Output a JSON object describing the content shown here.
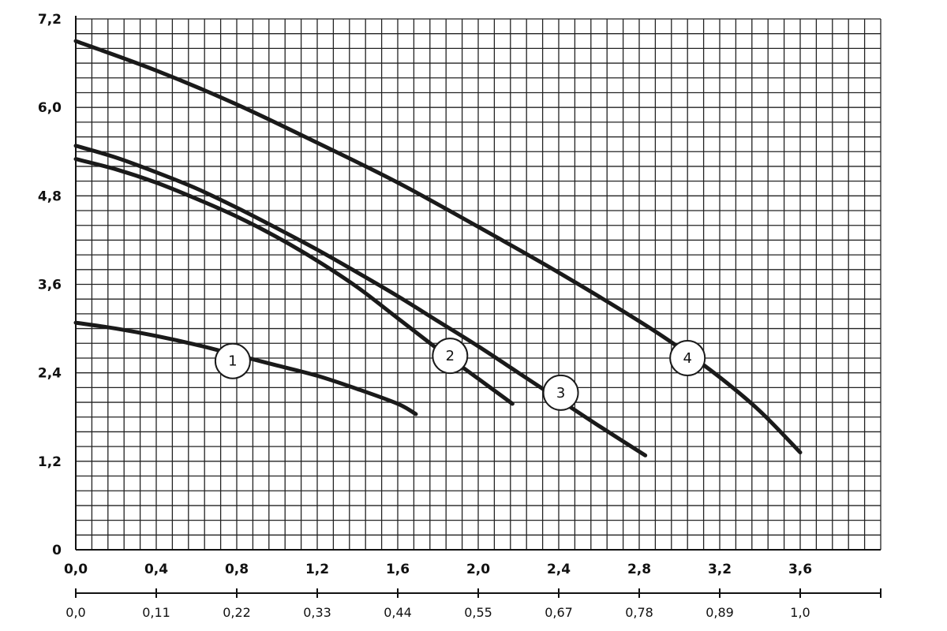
{
  "chart_data": {
    "type": "line",
    "title": "",
    "xlabel": "",
    "ylabel": "",
    "xlim": [
      0,
      4
    ],
    "ylim": [
      0,
      7.2
    ],
    "grid": true,
    "y_ticks": [
      {
        "value": 0,
        "label": "0"
      },
      {
        "value": 1.2,
        "label": "1,2"
      },
      {
        "value": 2.4,
        "label": "2,4"
      },
      {
        "value": 3.6,
        "label": "3,6"
      },
      {
        "value": 4.8,
        "label": "4,8"
      },
      {
        "value": 6.0,
        "label": "6,0"
      },
      {
        "value": 7.2,
        "label": "7,2"
      }
    ],
    "x_ticks": [
      {
        "value": 0,
        "label": "0,0"
      },
      {
        "value": 0.4,
        "label": "0,4"
      },
      {
        "value": 0.8,
        "label": "0,8"
      },
      {
        "value": 1.2,
        "label": "1,2"
      },
      {
        "value": 1.6,
        "label": "1,6"
      },
      {
        "value": 2.0,
        "label": "2,0"
      },
      {
        "value": 2.4,
        "label": "2,4"
      },
      {
        "value": 2.8,
        "label": "2,8"
      },
      {
        "value": 3.2,
        "label": "3,2"
      },
      {
        "value": 3.6,
        "label": "3,6"
      }
    ],
    "x2_ticks": [
      {
        "value": 0,
        "label": "0,0"
      },
      {
        "value": 0.4,
        "label": "0,11"
      },
      {
        "value": 0.8,
        "label": "0,22"
      },
      {
        "value": 1.2,
        "label": "0,33"
      },
      {
        "value": 1.6,
        "label": "0,44"
      },
      {
        "value": 2.0,
        "label": "0,55"
      },
      {
        "value": 2.4,
        "label": "0,67"
      },
      {
        "value": 2.8,
        "label": "0,78"
      },
      {
        "value": 3.2,
        "label": "0,89"
      },
      {
        "value": 3.6,
        "label": "1,0"
      }
    ],
    "series": [
      {
        "label": "1",
        "label_at": {
          "x": 0.78,
          "y": 2.56
        },
        "points": [
          [
            0,
            3.08
          ],
          [
            0.2,
            3.0
          ],
          [
            0.4,
            2.9
          ],
          [
            0.6,
            2.78
          ],
          [
            0.8,
            2.64
          ],
          [
            1.0,
            2.5
          ],
          [
            1.2,
            2.36
          ],
          [
            1.4,
            2.18
          ],
          [
            1.6,
            1.98
          ],
          [
            1.69,
            1.84
          ]
        ]
      },
      {
        "label": "2",
        "label_at": {
          "x": 1.86,
          "y": 2.63
        },
        "points": [
          [
            0,
            5.3
          ],
          [
            0.2,
            5.16
          ],
          [
            0.4,
            4.98
          ],
          [
            0.6,
            4.76
          ],
          [
            0.8,
            4.52
          ],
          [
            1.0,
            4.24
          ],
          [
            1.2,
            3.92
          ],
          [
            1.4,
            3.56
          ],
          [
            1.6,
            3.14
          ],
          [
            1.8,
            2.72
          ],
          [
            2.0,
            2.32
          ],
          [
            2.17,
            1.98
          ]
        ]
      },
      {
        "label": "3",
        "label_at": {
          "x": 2.41,
          "y": 2.13
        },
        "points": [
          [
            0,
            5.48
          ],
          [
            0.2,
            5.32
          ],
          [
            0.4,
            5.12
          ],
          [
            0.6,
            4.9
          ],
          [
            0.8,
            4.64
          ],
          [
            1.0,
            4.36
          ],
          [
            1.2,
            4.07
          ],
          [
            1.4,
            3.76
          ],
          [
            1.6,
            3.44
          ],
          [
            1.8,
            3.1
          ],
          [
            2.0,
            2.76
          ],
          [
            2.2,
            2.4
          ],
          [
            2.4,
            2.04
          ],
          [
            2.6,
            1.68
          ],
          [
            2.83,
            1.28
          ]
        ]
      },
      {
        "label": "4",
        "label_at": {
          "x": 3.04,
          "y": 2.6
        },
        "points": [
          [
            0,
            6.9
          ],
          [
            0.4,
            6.5
          ],
          [
            0.8,
            6.04
          ],
          [
            1.2,
            5.52
          ],
          [
            1.6,
            4.98
          ],
          [
            2.0,
            4.38
          ],
          [
            2.4,
            3.76
          ],
          [
            2.8,
            3.1
          ],
          [
            3.0,
            2.74
          ],
          [
            3.2,
            2.34
          ],
          [
            3.4,
            1.88
          ],
          [
            3.6,
            1.32
          ]
        ]
      }
    ]
  }
}
